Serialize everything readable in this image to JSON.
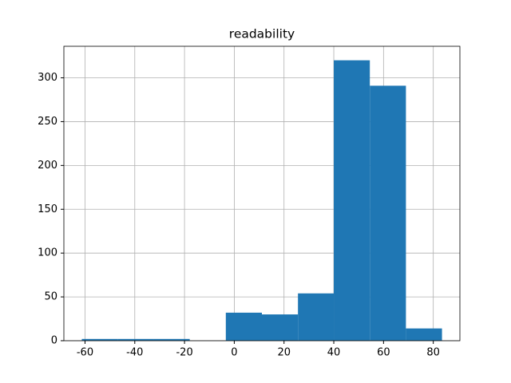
{
  "chart_data": {
    "type": "histogram",
    "title": "readability",
    "bins": [
      -61.3,
      -46.8,
      -32.4,
      -17.9,
      -3.4,
      11.1,
      25.6,
      40.0,
      54.5,
      69.0,
      83.5
    ],
    "values": [
      2,
      2,
      2,
      0,
      32,
      30,
      54,
      320,
      291,
      14
    ],
    "color": "#1f77b4",
    "xlim": [
      -68.5,
      90.7
    ],
    "xticks": [
      -60,
      -40,
      -20,
      0,
      20,
      40,
      60,
      80
    ],
    "ylim": [
      0,
      336
    ],
    "yticks": [
      0,
      50,
      100,
      150,
      200,
      250,
      300
    ],
    "grid": true
  }
}
